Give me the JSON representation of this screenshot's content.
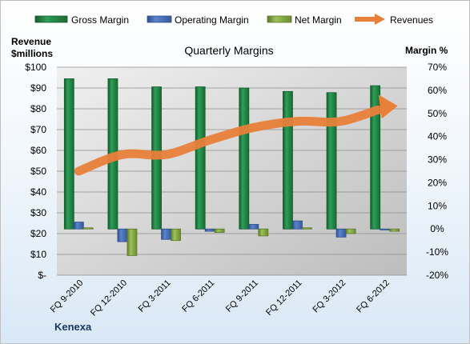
{
  "chart_data": {
    "type": "bar",
    "title": "Quarterly Margins",
    "left_axis_title_line1": "Revenue",
    "left_axis_title_line2": "$millions",
    "right_axis_title": "Margin %",
    "footer_label": "Kenexa",
    "categories": [
      "FQ 9-2010",
      "FQ 12-2010",
      "FQ 3-2011",
      "FQ 6-2011",
      "FQ 9-2011",
      "FQ 12-2011",
      "FQ 3-2012",
      "FQ 6-2012"
    ],
    "left_axis": {
      "min": 0,
      "max": 100,
      "step": 10,
      "tick_labels": [
        "$-",
        "$10",
        "$20",
        "$30",
        "$40",
        "$50",
        "$60",
        "$70",
        "$80",
        "$90",
        "$100"
      ]
    },
    "right_axis": {
      "min": -20,
      "max": 70,
      "step": 10,
      "tick_labels": [
        "-20%",
        "-10%",
        "0%",
        "10%",
        "20%",
        "30%",
        "40%",
        "50%",
        "60%",
        "70%"
      ]
    },
    "series": [
      {
        "name": "Gross Margin",
        "kind": "bar",
        "axis": "right",
        "color": "#1f8a44",
        "values": [
          65.0,
          65.0,
          61.5,
          61.5,
          61.0,
          59.5,
          59.0,
          62.0
        ]
      },
      {
        "name": "Operating Margin",
        "kind": "bar",
        "axis": "right",
        "color": "#4a6fb5",
        "values": [
          3.0,
          -5.5,
          -4.5,
          -1.0,
          2.0,
          3.5,
          -3.5,
          -0.2
        ]
      },
      {
        "name": "Net Margin",
        "kind": "bar",
        "axis": "right",
        "color": "#8db04a",
        "values": [
          0.5,
          -11.5,
          -5.0,
          -1.5,
          -3.0,
          0.5,
          -2.0,
          -1.0
        ]
      },
      {
        "name": "Revenues",
        "kind": "line",
        "axis": "left",
        "color": "#e8803a",
        "values": [
          50.0,
          58.0,
          58.0,
          65.0,
          71.0,
          74.0,
          74.0,
          81.0
        ]
      }
    ],
    "legend_position": "top",
    "grid": true
  }
}
